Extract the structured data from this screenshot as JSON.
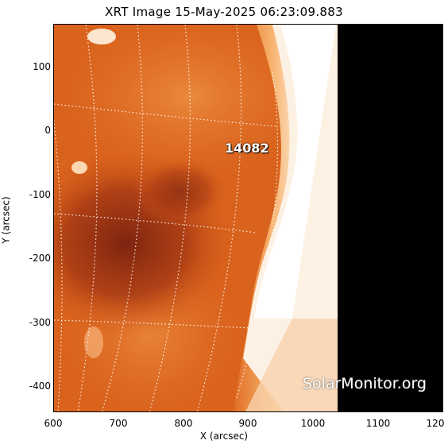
{
  "title": "XRT Image 15-May-2025 06:23:09.883",
  "xlabel": "X (arcsec)",
  "ylabel": "Y (arcsec)",
  "x_ticks": [
    "600",
    "700",
    "800",
    "900",
    "1000",
    "1100",
    "120"
  ],
  "y_ticks": [
    "100",
    "0",
    "-100",
    "-200",
    "-300",
    "-400"
  ],
  "region_label": "14082",
  "watermark": "SolarMonitor.org",
  "colors": {
    "disk": "#d9601a",
    "dark_region": "#8a2a10",
    "limb": "#ffffff",
    "space": "#000000"
  }
}
